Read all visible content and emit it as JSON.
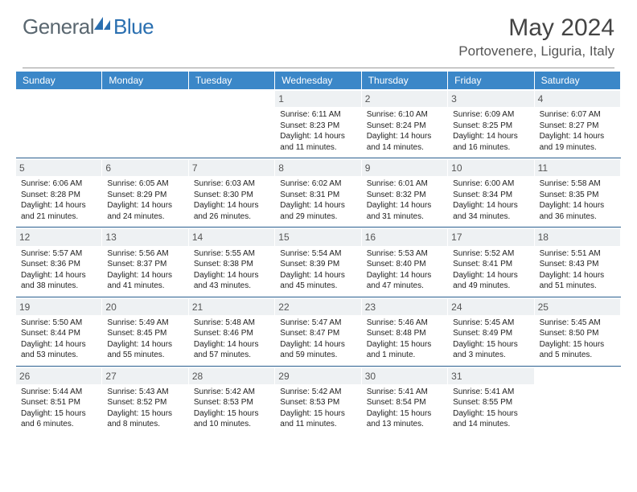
{
  "logo": {
    "text1": "General",
    "text2": "Blue"
  },
  "title": "May 2024",
  "location": "Portovenere, Liguria, Italy",
  "colors": {
    "header_bg": "#3b87c8",
    "header_text": "#ffffff",
    "daynum_bg": "#eef1f3",
    "week_border": "#2a5f8f",
    "logo_gray": "#5a6770",
    "logo_blue": "#2a6fb0"
  },
  "dayNames": [
    "Sunday",
    "Monday",
    "Tuesday",
    "Wednesday",
    "Thursday",
    "Friday",
    "Saturday"
  ],
  "weeks": [
    [
      null,
      null,
      null,
      {
        "d": "1",
        "sr": "6:11 AM",
        "ss": "8:23 PM",
        "dl": "14 hours and 11 minutes."
      },
      {
        "d": "2",
        "sr": "6:10 AM",
        "ss": "8:24 PM",
        "dl": "14 hours and 14 minutes."
      },
      {
        "d": "3",
        "sr": "6:09 AM",
        "ss": "8:25 PM",
        "dl": "14 hours and 16 minutes."
      },
      {
        "d": "4",
        "sr": "6:07 AM",
        "ss": "8:27 PM",
        "dl": "14 hours and 19 minutes."
      }
    ],
    [
      {
        "d": "5",
        "sr": "6:06 AM",
        "ss": "8:28 PM",
        "dl": "14 hours and 21 minutes."
      },
      {
        "d": "6",
        "sr": "6:05 AM",
        "ss": "8:29 PM",
        "dl": "14 hours and 24 minutes."
      },
      {
        "d": "7",
        "sr": "6:03 AM",
        "ss": "8:30 PM",
        "dl": "14 hours and 26 minutes."
      },
      {
        "d": "8",
        "sr": "6:02 AM",
        "ss": "8:31 PM",
        "dl": "14 hours and 29 minutes."
      },
      {
        "d": "9",
        "sr": "6:01 AM",
        "ss": "8:32 PM",
        "dl": "14 hours and 31 minutes."
      },
      {
        "d": "10",
        "sr": "6:00 AM",
        "ss": "8:34 PM",
        "dl": "14 hours and 34 minutes."
      },
      {
        "d": "11",
        "sr": "5:58 AM",
        "ss": "8:35 PM",
        "dl": "14 hours and 36 minutes."
      }
    ],
    [
      {
        "d": "12",
        "sr": "5:57 AM",
        "ss": "8:36 PM",
        "dl": "14 hours and 38 minutes."
      },
      {
        "d": "13",
        "sr": "5:56 AM",
        "ss": "8:37 PM",
        "dl": "14 hours and 41 minutes."
      },
      {
        "d": "14",
        "sr": "5:55 AM",
        "ss": "8:38 PM",
        "dl": "14 hours and 43 minutes."
      },
      {
        "d": "15",
        "sr": "5:54 AM",
        "ss": "8:39 PM",
        "dl": "14 hours and 45 minutes."
      },
      {
        "d": "16",
        "sr": "5:53 AM",
        "ss": "8:40 PM",
        "dl": "14 hours and 47 minutes."
      },
      {
        "d": "17",
        "sr": "5:52 AM",
        "ss": "8:41 PM",
        "dl": "14 hours and 49 minutes."
      },
      {
        "d": "18",
        "sr": "5:51 AM",
        "ss": "8:43 PM",
        "dl": "14 hours and 51 minutes."
      }
    ],
    [
      {
        "d": "19",
        "sr": "5:50 AM",
        "ss": "8:44 PM",
        "dl": "14 hours and 53 minutes."
      },
      {
        "d": "20",
        "sr": "5:49 AM",
        "ss": "8:45 PM",
        "dl": "14 hours and 55 minutes."
      },
      {
        "d": "21",
        "sr": "5:48 AM",
        "ss": "8:46 PM",
        "dl": "14 hours and 57 minutes."
      },
      {
        "d": "22",
        "sr": "5:47 AM",
        "ss": "8:47 PM",
        "dl": "14 hours and 59 minutes."
      },
      {
        "d": "23",
        "sr": "5:46 AM",
        "ss": "8:48 PM",
        "dl": "15 hours and 1 minute."
      },
      {
        "d": "24",
        "sr": "5:45 AM",
        "ss": "8:49 PM",
        "dl": "15 hours and 3 minutes."
      },
      {
        "d": "25",
        "sr": "5:45 AM",
        "ss": "8:50 PM",
        "dl": "15 hours and 5 minutes."
      }
    ],
    [
      {
        "d": "26",
        "sr": "5:44 AM",
        "ss": "8:51 PM",
        "dl": "15 hours and 6 minutes."
      },
      {
        "d": "27",
        "sr": "5:43 AM",
        "ss": "8:52 PM",
        "dl": "15 hours and 8 minutes."
      },
      {
        "d": "28",
        "sr": "5:42 AM",
        "ss": "8:53 PM",
        "dl": "15 hours and 10 minutes."
      },
      {
        "d": "29",
        "sr": "5:42 AM",
        "ss": "8:53 PM",
        "dl": "15 hours and 11 minutes."
      },
      {
        "d": "30",
        "sr": "5:41 AM",
        "ss": "8:54 PM",
        "dl": "15 hours and 13 minutes."
      },
      {
        "d": "31",
        "sr": "5:41 AM",
        "ss": "8:55 PM",
        "dl": "15 hours and 14 minutes."
      },
      null
    ]
  ],
  "labels": {
    "sunrise": "Sunrise:",
    "sunset": "Sunset:",
    "daylight": "Daylight:"
  }
}
